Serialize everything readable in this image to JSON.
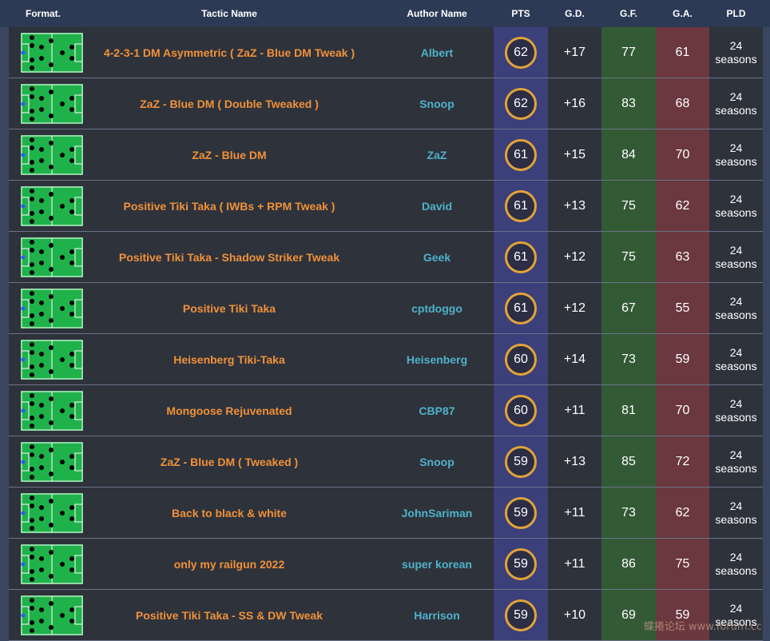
{
  "header": {
    "format": "Format.",
    "tactic_name": "Tactic Name",
    "author_name": "Author Name",
    "pts": "PTS",
    "gd": "G.D.",
    "gf": "G.F.",
    "ga": "G.A.",
    "pld": "PLD"
  },
  "rows": [
    {
      "name": "4-2-3-1 DM Asymmetric ( ZaZ - Blue DM Tweak )",
      "author": "Albert",
      "pts": "62",
      "gd": "+17",
      "gf": "77",
      "ga": "61",
      "pld_num": "24",
      "pld_unit": "seasons"
    },
    {
      "name": "ZaZ - Blue DM ( Double Tweaked )",
      "author": "Snoop",
      "pts": "62",
      "gd": "+16",
      "gf": "83",
      "ga": "68",
      "pld_num": "24",
      "pld_unit": "seasons"
    },
    {
      "name": "ZaZ - Blue DM",
      "author": "ZaZ",
      "pts": "61",
      "gd": "+15",
      "gf": "84",
      "ga": "70",
      "pld_num": "24",
      "pld_unit": "seasons"
    },
    {
      "name": "Positive Tiki Taka ( IWBs + RPM Tweak )",
      "author": "David",
      "pts": "61",
      "gd": "+13",
      "gf": "75",
      "ga": "62",
      "pld_num": "24",
      "pld_unit": "seasons"
    },
    {
      "name": "Positive Tiki Taka - Shadow Striker Tweak",
      "author": "Geek",
      "pts": "61",
      "gd": "+12",
      "gf": "75",
      "ga": "63",
      "pld_num": "24",
      "pld_unit": "seasons"
    },
    {
      "name": "Positive Tiki Taka",
      "author": "cptdoggo",
      "pts": "61",
      "gd": "+12",
      "gf": "67",
      "ga": "55",
      "pld_num": "24",
      "pld_unit": "seasons"
    },
    {
      "name": "Heisenberg Tiki-Taka",
      "author": "Heisenberg",
      "pts": "60",
      "gd": "+14",
      "gf": "73",
      "ga": "59",
      "pld_num": "24",
      "pld_unit": "seasons"
    },
    {
      "name": "Mongoose Rejuvenated",
      "author": "CBP87",
      "pts": "60",
      "gd": "+11",
      "gf": "81",
      "ga": "70",
      "pld_num": "24",
      "pld_unit": "seasons"
    },
    {
      "name": "ZaZ - Blue DM ( Tweaked )",
      "author": "Snoop",
      "pts": "59",
      "gd": "+13",
      "gf": "85",
      "ga": "72",
      "pld_num": "24",
      "pld_unit": "seasons"
    },
    {
      "name": "Back to black & white",
      "author": "JohnSariman",
      "pts": "59",
      "gd": "+11",
      "gf": "73",
      "ga": "62",
      "pld_num": "24",
      "pld_unit": "seasons"
    },
    {
      "name": "only my railgun 2022",
      "author": "super korean",
      "pts": "59",
      "gd": "+11",
      "gf": "86",
      "ga": "75",
      "pld_num": "24",
      "pld_unit": "seasons"
    },
    {
      "name": "Positive Tiki Taka - SS & DW Tweak",
      "author": "Harrison",
      "pts": "59",
      "gd": "+10",
      "gf": "69",
      "ga": "59",
      "pld_num": "24",
      "pld_unit": "seasons"
    }
  ],
  "watermark": "蝶捲论坛 www.forum.cc",
  "colors": {
    "pitch": "#1fb24a",
    "pts_ring": "#e2a33a",
    "name_text": "#f0913a",
    "author_text": "#4fb2c9",
    "goalkeeper": "#2f5bff"
  },
  "icon": "formation-pitch-icon"
}
